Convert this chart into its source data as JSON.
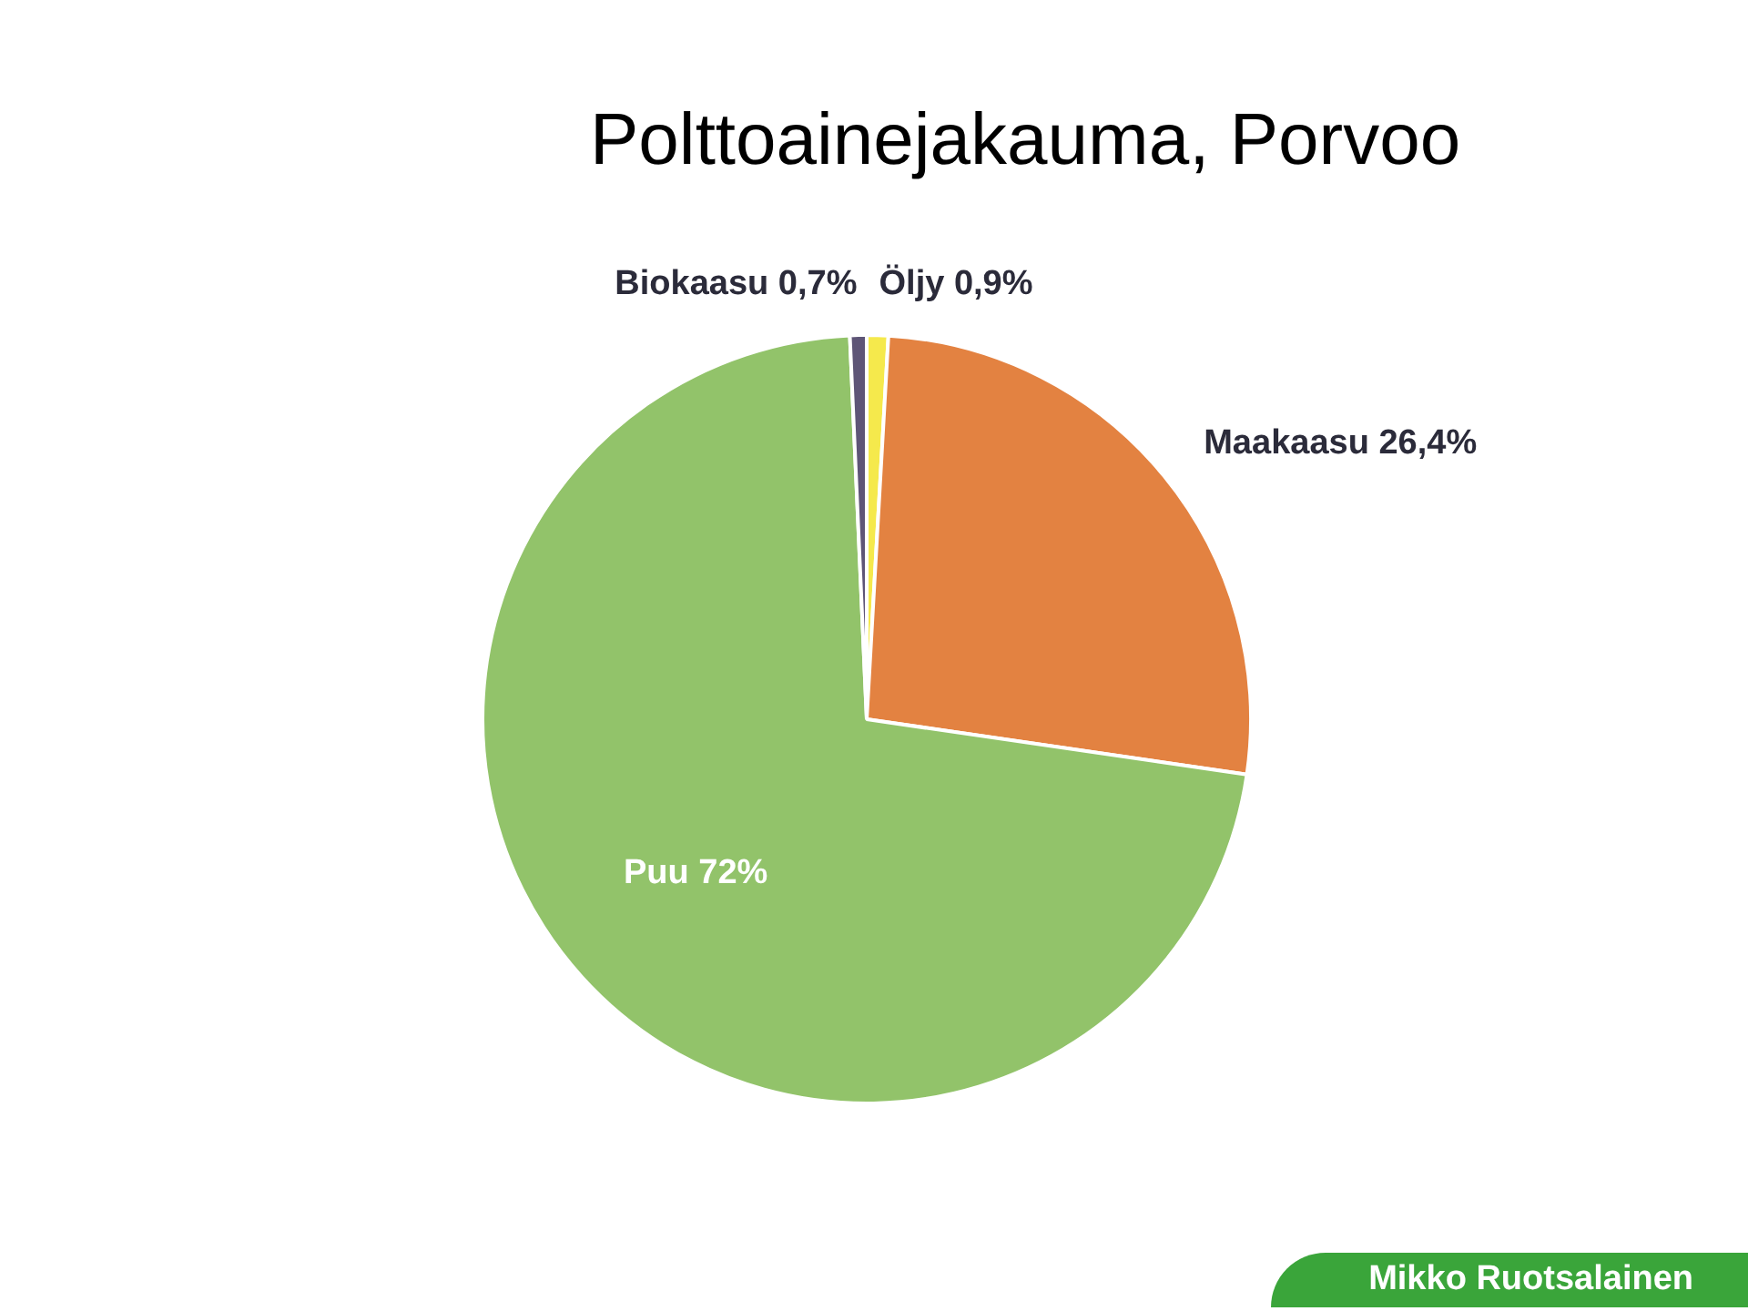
{
  "chart_data": {
    "type": "pie",
    "title": "Polttoainejakauma, Porvoo",
    "categories": [
      "Öljy",
      "Maakaasu",
      "Puu",
      "Biokaasu"
    ],
    "values": [
      0.9,
      26.4,
      72,
      0.7
    ],
    "value_labels": [
      "0,9%",
      "26,4%",
      "72%",
      "0,7%"
    ],
    "colors": [
      "#f5e94c",
      "#e38241",
      "#92c36a",
      "#5e5577"
    ],
    "legend": false,
    "annotations": [
      "Mikko Ruotsalainen"
    ]
  }
}
